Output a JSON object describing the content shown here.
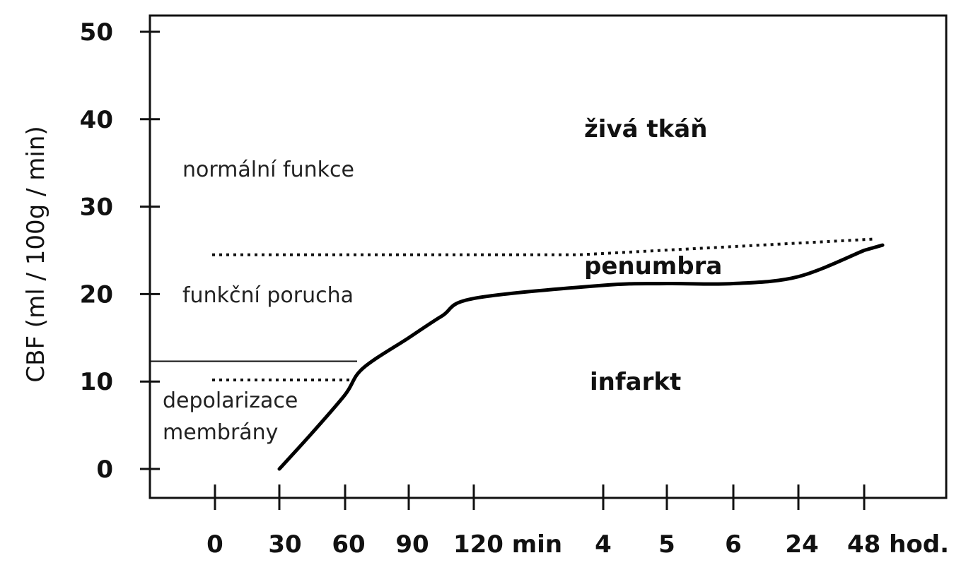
{
  "chart_data": {
    "type": "line",
    "title": "",
    "ylabel": "CBF (ml / 100g / min)",
    "xlabel": "",
    "ylim": [
      0,
      50
    ],
    "yticks": [
      "0",
      "10",
      "20",
      "30",
      "40",
      "50"
    ],
    "categories": [
      "0",
      "30",
      "60",
      "90",
      "120 min",
      "4",
      "5",
      "6",
      "24",
      "48 hod."
    ],
    "series": [
      {
        "x": [
          "30",
          "45",
          "60",
          "70",
          "90",
          "105",
          "120 min",
          "4",
          "5",
          "6",
          "24",
          "48 hod."
        ],
        "values": [
          0,
          4,
          8.5,
          11.5,
          15,
          17.5,
          19.5,
          21,
          21.2,
          21.2,
          22,
          25
        ]
      }
    ],
    "thresholds": [
      {
        "label": "funkční porucha / normální funkce",
        "value": 24.5,
        "value_end": 26.3,
        "style": "dotted"
      },
      {
        "label": "depolarizace membrány",
        "value": 12,
        "style": "solid",
        "x_end": "60"
      },
      {
        "label": "depolarizace membrány",
        "value": 10.5,
        "style": "dotted",
        "x_end": "60"
      }
    ],
    "annotations": {
      "normal": "normální funkce",
      "functional": "funkční porucha",
      "depolarization_line1": "depolarizace",
      "depolarization_line2": "membrány",
      "living": "živá tkáň",
      "penumbra": "penumbra",
      "infarct": "infarkt"
    },
    "grid": false,
    "legend": "none"
  }
}
